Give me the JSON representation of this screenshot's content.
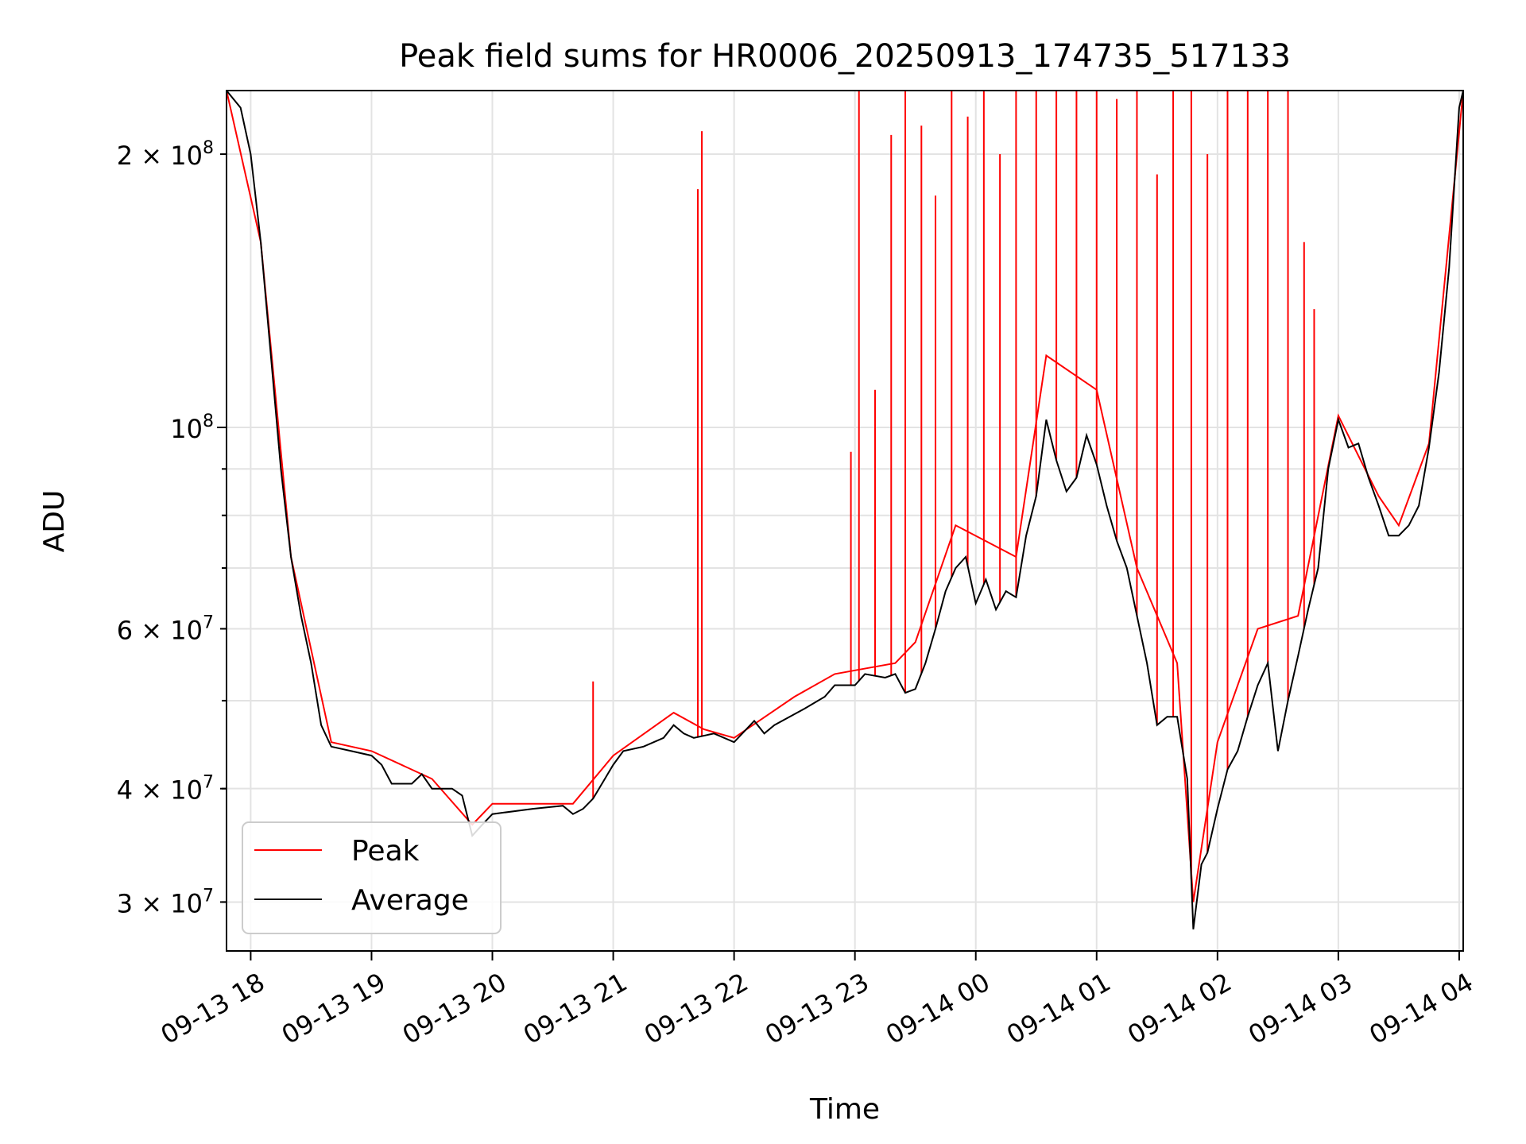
{
  "chart_data": {
    "type": "line",
    "title": "Peak field sums for HR0006_20250913_174735_517133",
    "xlabel": "Time",
    "ylabel": "ADU",
    "yscale": "log",
    "ylim": [
      26500000,
      235000000
    ],
    "xlim": [
      "09-13 17:48",
      "09-14 04:02"
    ],
    "grid": true,
    "legend_position": "lower-left",
    "x_ticks": [
      "09-13 18",
      "09-13 19",
      "09-13 20",
      "09-13 21",
      "09-13 22",
      "09-13 23",
      "09-14 00",
      "09-14 01",
      "09-14 02",
      "09-14 03",
      "09-14 04"
    ],
    "y_ticks_major": [
      {
        "value": 100000000,
        "mantissa": "",
        "exp": "8"
      }
    ],
    "y_ticks_minor": [
      {
        "value": 30000000,
        "mantissa": "3",
        "exp": "7"
      },
      {
        "value": 40000000,
        "mantissa": "4",
        "exp": "7"
      },
      {
        "value": 60000000,
        "mantissa": "6",
        "exp": "7"
      },
      {
        "value": 200000000,
        "mantissa": "2",
        "exp": "8"
      }
    ],
    "series": [
      {
        "name": "Average",
        "color": "#000000",
        "points": [
          [
            "09-13 17:48",
            235000000
          ],
          [
            "09-13 17:55",
            225000000
          ],
          [
            "09-13 18:00",
            200000000
          ],
          [
            "09-13 18:05",
            160000000
          ],
          [
            "09-13 18:10",
            120000000
          ],
          [
            "09-13 18:15",
            90000000
          ],
          [
            "09-13 18:20",
            72000000
          ],
          [
            "09-13 18:25",
            62000000
          ],
          [
            "09-13 18:30",
            55000000
          ],
          [
            "09-13 18:35",
            47000000
          ],
          [
            "09-13 18:40",
            44500000
          ],
          [
            "09-13 18:50",
            44000000
          ],
          [
            "09-13 19:00",
            43500000
          ],
          [
            "09-13 19:05",
            42500000
          ],
          [
            "09-13 19:10",
            40500000
          ],
          [
            "09-13 19:20",
            40500000
          ],
          [
            "09-13 19:25",
            41500000
          ],
          [
            "09-13 19:30",
            40000000
          ],
          [
            "09-13 19:40",
            40000000
          ],
          [
            "09-13 19:45",
            39300000
          ],
          [
            "09-13 19:50",
            35500000
          ],
          [
            "09-13 19:55",
            36500000
          ],
          [
            "09-13 20:00",
            37500000
          ],
          [
            "09-13 20:20",
            38000000
          ],
          [
            "09-13 20:35",
            38300000
          ],
          [
            "09-13 20:40",
            37500000
          ],
          [
            "09-13 20:45",
            38000000
          ],
          [
            "09-13 20:50",
            39000000
          ],
          [
            "09-13 21:00",
            42500000
          ],
          [
            "09-13 21:05",
            44000000
          ],
          [
            "09-13 21:15",
            44500000
          ],
          [
            "09-13 21:25",
            45500000
          ],
          [
            "09-13 21:30",
            47000000
          ],
          [
            "09-13 21:35",
            46000000
          ],
          [
            "09-13 21:40",
            45500000
          ],
          [
            "09-13 21:50",
            46000000
          ],
          [
            "09-13 22:00",
            45000000
          ],
          [
            "09-13 22:10",
            47500000
          ],
          [
            "09-13 22:15",
            46000000
          ],
          [
            "09-13 22:20",
            47000000
          ],
          [
            "09-13 22:35",
            49000000
          ],
          [
            "09-13 22:45",
            50500000
          ],
          [
            "09-13 22:50",
            52000000
          ],
          [
            "09-13 23:00",
            52000000
          ],
          [
            "09-13 23:05",
            53500000
          ],
          [
            "09-13 23:15",
            53000000
          ],
          [
            "09-13 23:20",
            53500000
          ],
          [
            "09-13 23:25",
            51000000
          ],
          [
            "09-13 23:30",
            51500000
          ],
          [
            "09-13 23:35",
            55000000
          ],
          [
            "09-13 23:40",
            60000000
          ],
          [
            "09-13 23:45",
            66000000
          ],
          [
            "09-13 23:50",
            70000000
          ],
          [
            "09-13 23:55",
            72000000
          ],
          [
            "09-14 00:00",
            64000000
          ],
          [
            "09-14 00:05",
            68000000
          ],
          [
            "09-14 00:10",
            63000000
          ],
          [
            "09-14 00:15",
            66000000
          ],
          [
            "09-14 00:20",
            65000000
          ],
          [
            "09-14 00:25",
            76000000
          ],
          [
            "09-14 00:30",
            84000000
          ],
          [
            "09-14 00:35",
            102000000
          ],
          [
            "09-14 00:40",
            92000000
          ],
          [
            "09-14 00:45",
            85000000
          ],
          [
            "09-14 00:50",
            88000000
          ],
          [
            "09-14 00:55",
            98000000
          ],
          [
            "09-14 01:00",
            91000000
          ],
          [
            "09-14 01:05",
            82000000
          ],
          [
            "09-14 01:10",
            75000000
          ],
          [
            "09-14 01:15",
            70000000
          ],
          [
            "09-14 01:20",
            62000000
          ],
          [
            "09-14 01:25",
            55000000
          ],
          [
            "09-14 01:30",
            47000000
          ],
          [
            "09-14 01:35",
            48000000
          ],
          [
            "09-14 01:40",
            48000000
          ],
          [
            "09-14 01:45",
            41000000
          ],
          [
            "09-14 01:48",
            28000000
          ],
          [
            "09-14 01:52",
            33000000
          ],
          [
            "09-14 01:55",
            34000000
          ],
          [
            "09-14 02:00",
            38000000
          ],
          [
            "09-14 02:05",
            42000000
          ],
          [
            "09-14 02:10",
            44000000
          ],
          [
            "09-14 02:15",
            48000000
          ],
          [
            "09-14 02:20",
            52000000
          ],
          [
            "09-14 02:25",
            55000000
          ],
          [
            "09-14 02:30",
            44000000
          ],
          [
            "09-14 02:35",
            50000000
          ],
          [
            "09-14 02:40",
            56000000
          ],
          [
            "09-14 02:45",
            63000000
          ],
          [
            "09-14 02:50",
            70000000
          ],
          [
            "09-14 02:55",
            90000000
          ],
          [
            "09-14 03:00",
            102000000
          ],
          [
            "09-14 03:05",
            95000000
          ],
          [
            "09-14 03:10",
            96000000
          ],
          [
            "09-14 03:15",
            88000000
          ],
          [
            "09-14 03:20",
            82000000
          ],
          [
            "09-14 03:25",
            76000000
          ],
          [
            "09-14 03:30",
            76000000
          ],
          [
            "09-14 03:35",
            78000000
          ],
          [
            "09-14 03:40",
            82000000
          ],
          [
            "09-14 03:45",
            95000000
          ],
          [
            "09-14 03:50",
            115000000
          ],
          [
            "09-14 03:55",
            150000000
          ],
          [
            "09-14 04:00",
            225000000
          ],
          [
            "09-14 04:02",
            235000000
          ]
        ]
      },
      {
        "name": "Peak",
        "color": "#ff0000",
        "points": [
          [
            "09-13 17:48",
            235000000
          ],
          [
            "09-13 18:05",
            160000000
          ],
          [
            "09-13 18:20",
            72000000
          ],
          [
            "09-13 18:40",
            45000000
          ],
          [
            "09-13 19:00",
            44000000
          ],
          [
            "09-13 19:30",
            41000000
          ],
          [
            "09-13 19:50",
            36500000
          ],
          [
            "09-13 20:00",
            38500000
          ],
          [
            "09-13 20:40",
            38500000
          ],
          [
            "09-13 21:00",
            43500000
          ],
          [
            "09-13 21:30",
            48500000
          ],
          [
            "09-13 21:45",
            46500000
          ],
          [
            "09-13 22:00",
            45500000
          ],
          [
            "09-13 22:30",
            50500000
          ],
          [
            "09-13 22:50",
            53500000
          ],
          [
            "09-13 23:00",
            54000000
          ],
          [
            "09-13 23:20",
            55000000
          ],
          [
            "09-13 23:30",
            58000000
          ],
          [
            "09-13 23:50",
            78000000
          ],
          [
            "09-14 00:20",
            72000000
          ],
          [
            "09-14 00:35",
            120000000
          ],
          [
            "09-14 01:00",
            110000000
          ],
          [
            "09-14 01:20",
            70000000
          ],
          [
            "09-14 01:40",
            55000000
          ],
          [
            "09-14 01:48",
            30000000
          ],
          [
            "09-14 02:00",
            45000000
          ],
          [
            "09-14 02:20",
            60000000
          ],
          [
            "09-14 02:40",
            62000000
          ],
          [
            "09-14 03:00",
            103000000
          ],
          [
            "09-14 03:20",
            84000000
          ],
          [
            "09-14 03:30",
            78000000
          ],
          [
            "09-14 03:45",
            96000000
          ],
          [
            "09-14 04:02",
            235000000
          ]
        ],
        "spikes": [
          [
            "09-13 20:50",
            52500000
          ],
          [
            "09-13 21:42",
            183000000
          ],
          [
            "09-13 21:44",
            212000000
          ],
          [
            "09-13 22:58",
            94000000
          ],
          [
            "09-13 23:02",
            235000000
          ],
          [
            "09-13 23:10",
            110000000
          ],
          [
            "09-13 23:18",
            210000000
          ],
          [
            "09-13 23:25",
            235000000
          ],
          [
            "09-13 23:33",
            215000000
          ],
          [
            "09-13 23:40",
            180000000
          ],
          [
            "09-13 23:48",
            235000000
          ],
          [
            "09-13 23:56",
            220000000
          ],
          [
            "09-14 00:04",
            235000000
          ],
          [
            "09-14 00:12",
            200000000
          ],
          [
            "09-14 00:20",
            235000000
          ],
          [
            "09-14 00:30",
            235000000
          ],
          [
            "09-14 00:40",
            235000000
          ],
          [
            "09-14 00:50",
            235000000
          ],
          [
            "09-14 01:00",
            235000000
          ],
          [
            "09-14 01:10",
            230000000
          ],
          [
            "09-14 01:20",
            235000000
          ],
          [
            "09-14 01:30",
            190000000
          ],
          [
            "09-14 01:38",
            235000000
          ],
          [
            "09-14 01:47",
            235000000
          ],
          [
            "09-14 01:55",
            200000000
          ],
          [
            "09-14 02:05",
            235000000
          ],
          [
            "09-14 02:15",
            235000000
          ],
          [
            "09-14 02:25",
            235000000
          ],
          [
            "09-14 02:35",
            235000000
          ],
          [
            "09-14 02:43",
            160000000
          ],
          [
            "09-14 02:48",
            135000000
          ]
        ]
      }
    ]
  }
}
